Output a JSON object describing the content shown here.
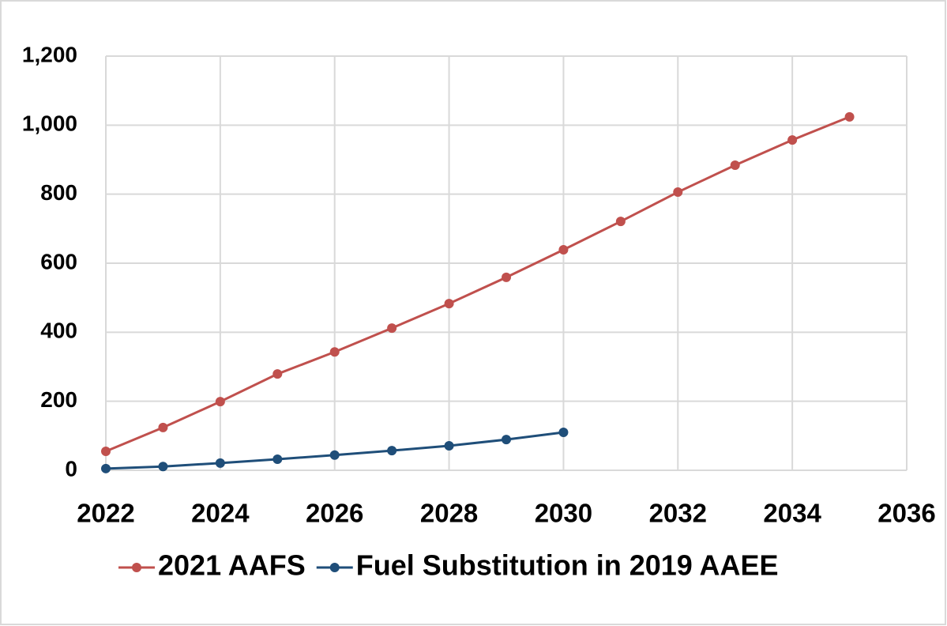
{
  "chart_data": {
    "type": "line",
    "x": [
      2022,
      2023,
      2024,
      2025,
      2026,
      2027,
      2028,
      2029,
      2030,
      2031,
      2032,
      2033,
      2034,
      2035
    ],
    "series": [
      {
        "name": "2021 AAFS",
        "color": "#c0504d",
        "values": [
          55,
          124,
          199,
          279,
          343,
          412,
          483,
          559,
          639,
          721,
          806,
          884,
          957,
          1024
        ]
      },
      {
        "name": "Fuel Substitution in 2019 AAEE",
        "color": "#1f4e79",
        "values": [
          5,
          11,
          21,
          32,
          44,
          57,
          71,
          89,
          110,
          null,
          null,
          null,
          null,
          null
        ]
      }
    ],
    "xlim": [
      2022,
      2036
    ],
    "xticks": [
      2022,
      2024,
      2026,
      2028,
      2030,
      2032,
      2034,
      2036
    ],
    "ylim": [
      0,
      1200
    ],
    "yticks": [
      0,
      200,
      400,
      600,
      800,
      {
        "value": 1000,
        "label": "1,000"
      },
      {
        "value": 1200,
        "label": "1,200"
      }
    ],
    "grid": true,
    "legend": "bottom"
  }
}
